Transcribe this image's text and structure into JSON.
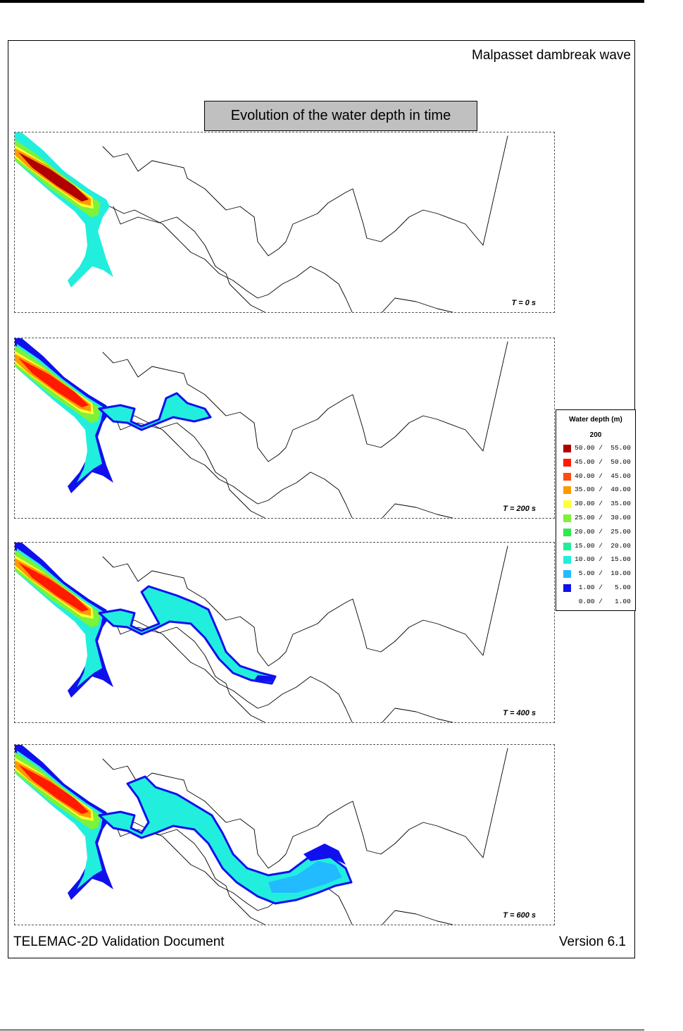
{
  "header": {
    "title": "Malpasset dambreak wave"
  },
  "figure": {
    "subtitle": "Evolution of the water depth in time"
  },
  "panels": [
    {
      "time_label": "T = 0 s",
      "stage": 0
    },
    {
      "time_label": "T = 200 s",
      "stage": 1
    },
    {
      "time_label": "T = 400 s",
      "stage": 2
    },
    {
      "time_label": "T = 600 s",
      "stage": 3
    }
  ],
  "legend": {
    "title": "Water depth (m)",
    "subtitle": "200",
    "items": [
      {
        "range": "50.00 /  55.00",
        "color": "#b00000"
      },
      {
        "range": "45.00 /  50.00",
        "color": "#ff1a00"
      },
      {
        "range": "40.00 /  45.00",
        "color": "#ff4a10"
      },
      {
        "range": "35.00 /  40.00",
        "color": "#ff9a00"
      },
      {
        "range": "30.00 /  35.00",
        "color": "#ffff33"
      },
      {
        "range": "25.00 /  30.00",
        "color": "#7cf23a"
      },
      {
        "range": "20.00 /  25.00",
        "color": "#30e850"
      },
      {
        "range": "15.00 /  20.00",
        "color": "#22ee99"
      },
      {
        "range": "10.00 /  15.00",
        "color": "#22eedd"
      },
      {
        "range": " 5.00 /  10.00",
        "color": "#22bbff"
      },
      {
        "range": " 1.00 /   5.00",
        "color": "#1010ee"
      },
      {
        "range": " 0.00 /   1.00",
        "color": "#ffffff"
      }
    ]
  },
  "footer": {
    "left": "TELEMAC-2D Validation Document",
    "right": "Version 6.1"
  }
}
